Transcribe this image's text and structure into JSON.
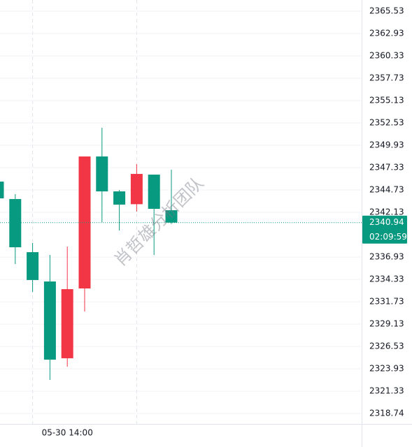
{
  "chart_data": {
    "type": "candlestick",
    "categories": [
      null,
      null,
      null,
      null,
      "05-30 14:00",
      null,
      null,
      null,
      null,
      null,
      null
    ],
    "open": [
      2345.71,
      2343.68,
      2337.5,
      2334.09,
      2325.16,
      2333.28,
      2348.63,
      2344.57,
      2343.08,
      2346.52,
      2342.38
    ],
    "high": [
      2345.71,
      2344.25,
      2338.56,
      2337.18,
      2338.15,
      2348.63,
      2351.96,
      2344.73,
      2347.74,
      2346.52,
      2347.09
    ],
    "low": [
      2343.76,
      2336.12,
      2332.87,
      2322.64,
      2324.18,
      2330.6,
      2341.0,
      2340.02,
      2342.22,
      2337.18,
      2340.78
    ],
    "close": [
      2343.76,
      2338.07,
      2334.26,
      2325.0,
      2333.2,
      2348.63,
      2344.57,
      2343.03,
      2346.6,
      2342.54,
      2340.94
    ],
    "up_color": "#f23645",
    "down_color": "#089981",
    "ylim": [
      2317.52,
      2366.83
    ],
    "yticks": [
      2365.53,
      2362.93,
      2360.33,
      2357.73,
      2355.13,
      2352.53,
      2349.93,
      2347.33,
      2344.73,
      2342.13,
      2336.93,
      2334.33,
      2331.73,
      2329.13,
      2326.53,
      2323.93,
      2321.33,
      2318.74
    ],
    "grid": true,
    "last_price": 2340.94,
    "countdown": "02:09:59",
    "watermark": "肖哲雄分析团队"
  }
}
